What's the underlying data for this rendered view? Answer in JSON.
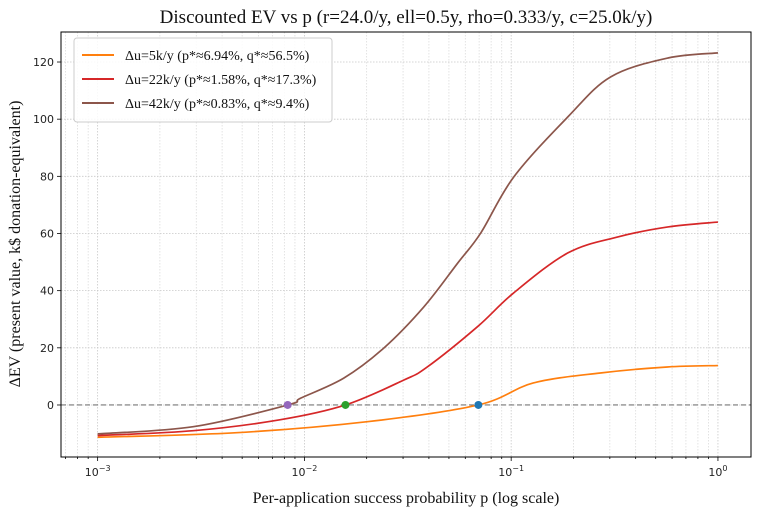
{
  "chart_data": {
    "type": "line",
    "title": "Discounted EV vs p   (r=24.0/y, ell=0.5y, rho=0.333/y, c=25.0k/y)",
    "xlabel": "Per-application success probability p (log scale)",
    "ylabel": "ΔEV (present value, k$ donation-equivalent)",
    "xscale": "log",
    "xlim": [
      0.000665,
      1.445
    ],
    "ylim": [
      -18.2,
      130.5
    ],
    "xticks": [
      {
        "value": 0.001,
        "base": "10",
        "exp": "−3"
      },
      {
        "value": 0.01,
        "base": "10",
        "exp": "−2"
      },
      {
        "value": 0.1,
        "base": "10",
        "exp": "−1"
      },
      {
        "value": 1,
        "base": "10",
        "exp": "0"
      }
    ],
    "yticks": [
      0,
      20,
      40,
      60,
      80,
      100,
      120
    ],
    "grid": true,
    "legend_position": "top-left",
    "zero_line": 0,
    "series": [
      {
        "name": "Δu=5k/y (p*≈6.94%, q*≈56.5%)",
        "color": "#ff7f0e",
        "x": [
          0.001,
          0.0047,
          0.0204,
          0.0693,
          0.128,
          0.27,
          0.569,
          1.0
        ],
        "y": [
          -11.3,
          -9.7,
          -5.8,
          0,
          7.7,
          11.2,
          13.3,
          13.8
        ],
        "marker": {
          "x": 0.0694,
          "y": 0,
          "color": "#1f77b4"
        }
      },
      {
        "name": "Δu=22k/y (p*≈1.58%, q*≈17.3%)",
        "color": "#d62728",
        "x": [
          0.001,
          0.0029,
          0.0076,
          0.0158,
          0.0302,
          0.0393,
          0.0685,
          0.1028,
          0.188,
          0.328,
          0.573,
          1.0
        ],
        "y": [
          -10.7,
          -9.0,
          -5.2,
          0,
          8.7,
          13.3,
          27.3,
          39.2,
          53.2,
          58.8,
          62.3,
          64.0
        ],
        "marker": {
          "x": 0.0158,
          "y": 0,
          "color": "#2ca02c"
        }
      },
      {
        "name": "Δu=42k/y (p*≈0.83%, q*≈9.4%)",
        "color": "#8c564b",
        "x": [
          0.001,
          0.0029,
          0.0083,
          0.0096,
          0.0155,
          0.0242,
          0.0378,
          0.0552,
          0.0713,
          0.103,
          0.188,
          0.303,
          0.573,
          1.0
        ],
        "y": [
          -10.1,
          -7.6,
          0,
          2.4,
          9.4,
          19.9,
          34.3,
          49.7,
          60.2,
          79.8,
          100.8,
          114.8,
          121.4,
          123.2
        ],
        "marker": {
          "x": 0.0083,
          "y": 0,
          "color": "#9467bd"
        }
      }
    ]
  }
}
